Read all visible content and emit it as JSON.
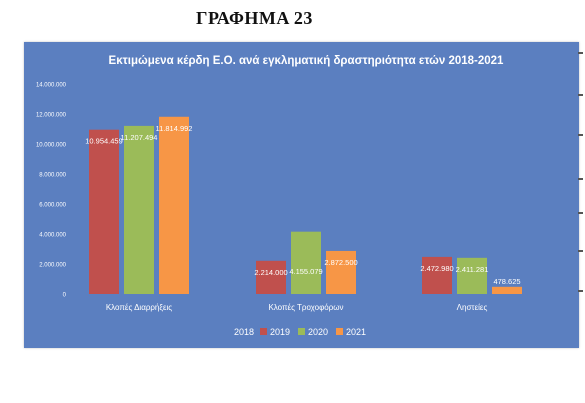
{
  "page": {
    "heading": "ΓΡΑΦΗΜΑ 23"
  },
  "colors": {
    "background": "#5b7fc0",
    "series": [
      "#c0504d",
      "#9bbb59",
      "#f79646"
    ],
    "text": "#ffffff"
  },
  "chart_data": {
    "type": "bar",
    "title": "Εκτιμώμενα κέρδη Ε.Ο. ανά εγκληματική δραστηριότητα ετών 2018-2021",
    "categories": [
      "Κλοπές Διαρρήξεις",
      "Κλοπές Τροχοφόρων",
      "Ληστείες"
    ],
    "series": [
      {
        "name": "2019",
        "values": [
          10954459,
          2214000,
          2472980
        ],
        "labels": [
          "10.954.459",
          "2.214.000",
          "2.472.980"
        ]
      },
      {
        "name": "2020",
        "values": [
          11207494,
          4155079,
          2411281
        ],
        "labels": [
          "11.207.494",
          "4.155.079",
          "2.411.281"
        ]
      },
      {
        "name": "2021",
        "values": [
          11814992,
          2872500,
          478625
        ],
        "labels": [
          "11.814.992",
          "2.872.500",
          "478.625"
        ]
      }
    ],
    "legend_prefix": "2018",
    "legend_position": "bottom",
    "ylim": [
      0,
      14000000
    ],
    "yticks": [
      0,
      2000000,
      4000000,
      6000000,
      8000000,
      10000000,
      12000000,
      14000000
    ],
    "ytick_labels": [
      "0",
      "2.000.000",
      "4.000.000",
      "6.000.000",
      "8.000.000",
      "10.000.000",
      "12.000.000",
      "14.000.000"
    ],
    "grid": false
  }
}
